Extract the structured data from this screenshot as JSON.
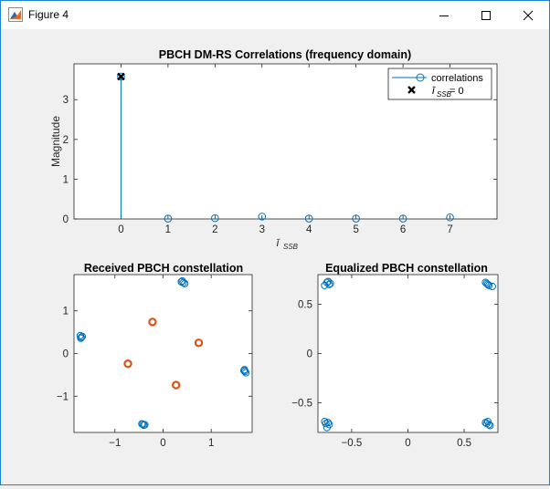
{
  "window": {
    "title": "Figure 4",
    "icon": "matlab-figure-icon",
    "controls": [
      "minimize-icon",
      "maximize-icon",
      "close-icon"
    ]
  },
  "colors": {
    "series_blue": "#0072bd",
    "series_orange": "#d95319",
    "axes": "#262626"
  },
  "chart_data": [
    {
      "type": "stem",
      "title": "PBCH DM-RS Correlations (frequency domain)",
      "xlabel": "ī_SSB",
      "ylabel": "Magnitude",
      "xlim": [
        -1,
        8
      ],
      "ylim": [
        0,
        3.9
      ],
      "xticks": [
        0,
        1,
        2,
        3,
        4,
        5,
        6,
        7
      ],
      "yticks": [
        0,
        1,
        2,
        3
      ],
      "series": [
        {
          "name": "correlations",
          "x": [
            0,
            1,
            2,
            3,
            4,
            5,
            6,
            7
          ],
          "values": [
            3.58,
            0.01,
            0.02,
            0.06,
            0.01,
            0.01,
            0.01,
            0.04
          ]
        },
        {
          "name": "ī_SSB = 0",
          "x": [
            0
          ],
          "values": [
            3.58
          ]
        }
      ],
      "legend_labels": [
        "correlations",
        "ī",
        "SSB",
        " = 0"
      ],
      "legend": "top-right",
      "grid": false
    },
    {
      "type": "scatter",
      "title": "Received PBCH constellation",
      "xlim": [
        -1.85,
        1.85
      ],
      "ylim": [
        -1.85,
        1.85
      ],
      "xticks": [
        -1,
        0,
        1
      ],
      "yticks": [
        -1,
        0,
        1
      ],
      "series": [
        {
          "color": "blue",
          "points": [
            [
              -1.72,
              0.42
            ],
            [
              -1.7,
              0.38
            ],
            [
              -1.68,
              0.4
            ],
            [
              -1.71,
              0.36
            ],
            [
              0.38,
              1.68
            ],
            [
              0.42,
              1.66
            ],
            [
              0.45,
              1.64
            ],
            [
              0.4,
              1.7
            ],
            [
              1.68,
              -0.4
            ],
            [
              1.7,
              -0.42
            ],
            [
              1.72,
              -0.45
            ],
            [
              1.69,
              -0.38
            ],
            [
              -0.42,
              -1.66
            ],
            [
              -0.4,
              -1.68
            ],
            [
              -0.38,
              -1.67
            ],
            [
              -0.44,
              -1.65
            ]
          ]
        },
        {
          "color": "orange",
          "points": [
            [
              -0.22,
              0.74
            ],
            [
              0.74,
              0.25
            ],
            [
              -0.73,
              -0.24
            ],
            [
              0.27,
              -0.74
            ]
          ]
        }
      ]
    },
    {
      "type": "scatter",
      "title": "Equalized PBCH constellation",
      "xlim": [
        -0.8,
        0.8
      ],
      "ylim": [
        -0.8,
        0.8
      ],
      "xticks": [
        -0.5,
        0,
        0.5
      ],
      "yticks": [
        -0.5,
        0,
        0.5
      ],
      "series": [
        {
          "color": "blue",
          "points": [
            [
              -0.72,
              0.72
            ],
            [
              -0.7,
              0.7
            ],
            [
              -0.74,
              0.69
            ],
            [
              -0.71,
              0.73
            ],
            [
              -0.69,
              0.71
            ],
            [
              0.7,
              0.71
            ],
            [
              0.72,
              0.69
            ],
            [
              0.69,
              0.72
            ],
            [
              0.71,
              0.7
            ],
            [
              0.75,
              0.68
            ],
            [
              -0.71,
              -0.7
            ],
            [
              -0.74,
              -0.69
            ],
            [
              -0.7,
              -0.72
            ],
            [
              -0.72,
              -0.75
            ],
            [
              -0.73,
              -0.71
            ],
            [
              0.7,
              -0.71
            ],
            [
              0.72,
              -0.72
            ],
            [
              0.69,
              -0.7
            ],
            [
              0.73,
              -0.73
            ],
            [
              0.71,
              -0.69
            ]
          ]
        }
      ]
    }
  ]
}
